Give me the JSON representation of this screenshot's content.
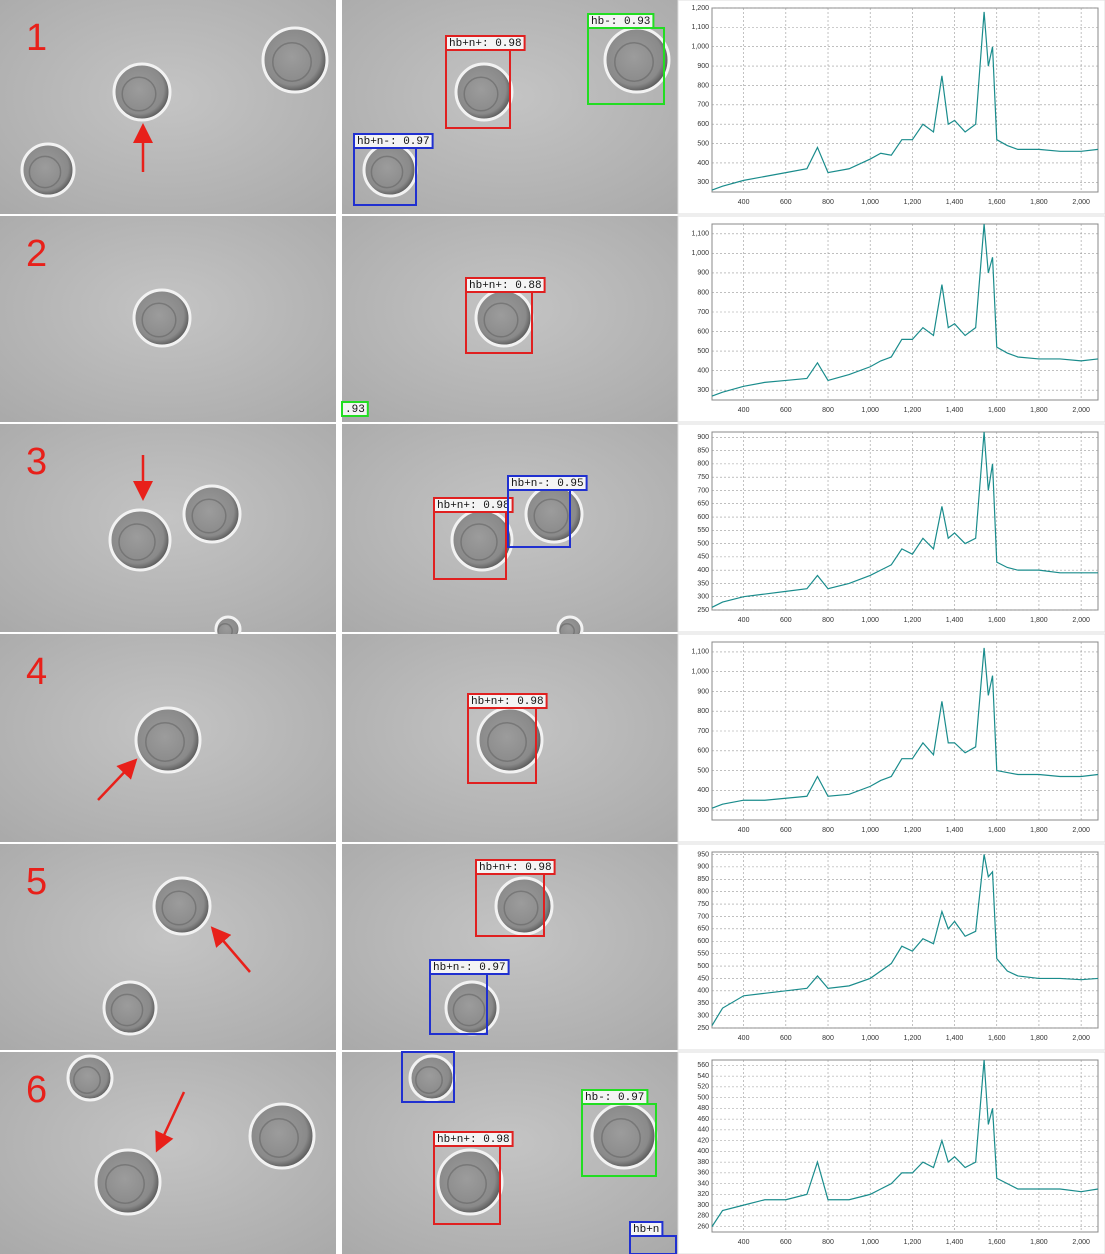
{
  "panels": [
    {
      "number": "1",
      "detections": [
        {
          "label": "hb+n+: 0.98",
          "color": "#e02020"
        },
        {
          "label": "hb-: 0.93",
          "color": "#22dd22"
        },
        {
          "label": "hb+n-: 0.97",
          "color": "#2030d0"
        }
      ]
    },
    {
      "number": "2",
      "detections": [
        {
          "label": "hb+n+: 0.88",
          "color": "#e02020"
        },
        {
          "label": ".93",
          "color": "#22dd22"
        }
      ]
    },
    {
      "number": "3",
      "detections": [
        {
          "label": "hb+n+: 0.98",
          "color": "#e02020"
        },
        {
          "label": "hb+n-: 0.95",
          "color": "#2030d0"
        }
      ]
    },
    {
      "number": "4",
      "detections": [
        {
          "label": "hb+n+: 0.98",
          "color": "#e02020"
        }
      ]
    },
    {
      "number": "5",
      "detections": [
        {
          "label": "hb+n+: 0.98",
          "color": "#e02020"
        },
        {
          "label": "hb+n-: 0.97",
          "color": "#2030d0"
        }
      ]
    },
    {
      "number": "6",
      "detections": [
        {
          "label": "hb-: 0.97",
          "color": "#22dd22"
        },
        {
          "label": "hb+n+: 0.98",
          "color": "#e02020"
        },
        {
          "label": "hb+n",
          "color": "#2030d0"
        }
      ]
    }
  ],
  "chart_data": [
    {
      "type": "line",
      "color": "#1a8c8c",
      "grid": true,
      "xlim": [
        250,
        2080
      ],
      "ylim": [
        250,
        1200
      ],
      "xticks": [
        400,
        600,
        800,
        {
          "value": 1000,
          "label": "1,000"
        },
        {
          "value": 1200,
          "label": "1,200"
        },
        {
          "value": 1400,
          "label": "1,400"
        },
        {
          "value": 1600,
          "label": "1,600"
        },
        {
          "value": 1800,
          "label": "1,800"
        },
        {
          "value": 2000,
          "label": "2,000"
        }
      ],
      "yticks": [
        300,
        400,
        500,
        600,
        700,
        800,
        900,
        {
          "value": 1000,
          "label": "1,000"
        },
        {
          "value": 1100,
          "label": "1,100"
        },
        {
          "value": 1200,
          "label": "1,200"
        }
      ],
      "x": [
        250,
        300,
        400,
        500,
        600,
        700,
        750,
        800,
        900,
        1000,
        1050,
        1100,
        1150,
        1200,
        1250,
        1300,
        1340,
        1370,
        1400,
        1450,
        1500,
        1540,
        1560,
        1580,
        1600,
        1650,
        1700,
        1800,
        1900,
        2000,
        2080
      ],
      "values": [
        260,
        280,
        310,
        330,
        350,
        370,
        480,
        350,
        370,
        420,
        450,
        440,
        520,
        520,
        600,
        560,
        850,
        600,
        620,
        560,
        600,
        1180,
        900,
        1000,
        520,
        490,
        470,
        470,
        460,
        460,
        470
      ]
    },
    {
      "type": "line",
      "color": "#1a8c8c",
      "grid": true,
      "xlim": [
        250,
        2080
      ],
      "ylim": [
        250,
        1150
      ],
      "xticks": [
        400,
        600,
        800,
        {
          "value": 1000,
          "label": "1,000"
        },
        {
          "value": 1200,
          "label": "1,200"
        },
        {
          "value": 1400,
          "label": "1,400"
        },
        {
          "value": 1600,
          "label": "1,600"
        },
        {
          "value": 1800,
          "label": "1,800"
        },
        {
          "value": 2000,
          "label": "2,000"
        }
      ],
      "yticks": [
        300,
        400,
        500,
        600,
        700,
        800,
        900,
        {
          "value": 1000,
          "label": "1,000"
        },
        {
          "value": 1100,
          "label": "1,100"
        }
      ],
      "x": [
        250,
        300,
        400,
        500,
        600,
        700,
        750,
        800,
        900,
        1000,
        1050,
        1100,
        1150,
        1200,
        1250,
        1300,
        1340,
        1370,
        1400,
        1450,
        1500,
        1540,
        1560,
        1580,
        1600,
        1650,
        1700,
        1800,
        1900,
        2000,
        2080
      ],
      "values": [
        270,
        290,
        320,
        340,
        350,
        360,
        440,
        350,
        380,
        420,
        450,
        470,
        560,
        560,
        620,
        580,
        840,
        620,
        640,
        580,
        620,
        1150,
        900,
        980,
        520,
        490,
        470,
        460,
        460,
        450,
        460
      ]
    },
    {
      "type": "line",
      "color": "#1a8c8c",
      "grid": true,
      "xlim": [
        250,
        2080
      ],
      "ylim": [
        250,
        920
      ],
      "xticks": [
        400,
        600,
        800,
        {
          "value": 1000,
          "label": "1,000"
        },
        {
          "value": 1200,
          "label": "1,200"
        },
        {
          "value": 1400,
          "label": "1,400"
        },
        {
          "value": 1600,
          "label": "1,600"
        },
        {
          "value": 1800,
          "label": "1,800"
        },
        {
          "value": 2000,
          "label": "2,000"
        }
      ],
      "yticks": [
        250,
        300,
        350,
        400,
        450,
        500,
        550,
        600,
        650,
        700,
        750,
        800,
        850,
        900
      ],
      "x": [
        250,
        300,
        400,
        500,
        600,
        700,
        750,
        800,
        900,
        1000,
        1050,
        1100,
        1150,
        1200,
        1250,
        1300,
        1340,
        1370,
        1400,
        1450,
        1500,
        1540,
        1560,
        1580,
        1600,
        1650,
        1700,
        1800,
        1900,
        2000,
        2080
      ],
      "values": [
        260,
        280,
        300,
        310,
        320,
        330,
        380,
        330,
        350,
        380,
        400,
        420,
        480,
        460,
        520,
        480,
        640,
        520,
        540,
        500,
        520,
        920,
        700,
        800,
        430,
        410,
        400,
        400,
        390,
        390,
        390
      ]
    },
    {
      "type": "line",
      "color": "#1a8c8c",
      "grid": true,
      "xlim": [
        250,
        2080
      ],
      "ylim": [
        250,
        1150
      ],
      "xticks": [
        400,
        600,
        800,
        {
          "value": 1000,
          "label": "1,000"
        },
        {
          "value": 1200,
          "label": "1,200"
        },
        {
          "value": 1400,
          "label": "1,400"
        },
        {
          "value": 1600,
          "label": "1,600"
        },
        {
          "value": 1800,
          "label": "1,800"
        },
        {
          "value": 2000,
          "label": "2,000"
        }
      ],
      "yticks": [
        300,
        400,
        500,
        600,
        700,
        800,
        900,
        {
          "value": 1000,
          "label": "1,000"
        },
        {
          "value": 1100,
          "label": "1,100"
        }
      ],
      "x": [
        250,
        300,
        400,
        500,
        600,
        700,
        750,
        800,
        900,
        1000,
        1050,
        1100,
        1150,
        1200,
        1250,
        1300,
        1340,
        1370,
        1400,
        1450,
        1500,
        1540,
        1560,
        1580,
        1600,
        1650,
        1700,
        1800,
        1900,
        2000,
        2080
      ],
      "values": [
        310,
        330,
        350,
        350,
        360,
        370,
        470,
        370,
        380,
        420,
        450,
        470,
        560,
        560,
        640,
        580,
        850,
        640,
        640,
        590,
        620,
        1120,
        880,
        980,
        500,
        490,
        480,
        480,
        470,
        470,
        480
      ]
    },
    {
      "type": "line",
      "color": "#1a8c8c",
      "grid": true,
      "xlim": [
        250,
        2080
      ],
      "ylim": [
        250,
        960
      ],
      "xticks": [
        400,
        600,
        800,
        {
          "value": 1000,
          "label": "1,000"
        },
        {
          "value": 1200,
          "label": "1,200"
        },
        {
          "value": 1400,
          "label": "1,400"
        },
        {
          "value": 1600,
          "label": "1,600"
        },
        {
          "value": 1800,
          "label": "1,800"
        },
        {
          "value": 2000,
          "label": "2,000"
        }
      ],
      "yticks": [
        250,
        300,
        350,
        400,
        450,
        500,
        550,
        600,
        650,
        700,
        750,
        800,
        850,
        900,
        950
      ],
      "x": [
        250,
        300,
        400,
        500,
        600,
        700,
        750,
        800,
        900,
        1000,
        1050,
        1100,
        1150,
        1200,
        1250,
        1300,
        1340,
        1370,
        1400,
        1450,
        1500,
        1540,
        1560,
        1580,
        1600,
        1650,
        1700,
        1800,
        1900,
        2000,
        2080
      ],
      "values": [
        260,
        330,
        380,
        390,
        400,
        410,
        460,
        410,
        420,
        450,
        480,
        510,
        580,
        560,
        610,
        590,
        720,
        650,
        680,
        620,
        640,
        950,
        860,
        880,
        530,
        480,
        460,
        450,
        450,
        445,
        450
      ]
    },
    {
      "type": "line",
      "color": "#1a8c8c",
      "grid": true,
      "xlim": [
        250,
        2080
      ],
      "ylim": [
        250,
        570
      ],
      "xticks": [
        400,
        600,
        800,
        {
          "value": 1000,
          "label": "1,000"
        },
        {
          "value": 1200,
          "label": "1,200"
        },
        {
          "value": 1400,
          "label": "1,400"
        },
        {
          "value": 1600,
          "label": "1,600"
        },
        {
          "value": 1800,
          "label": "1,800"
        },
        {
          "value": 2000,
          "label": "2,000"
        }
      ],
      "yticks": [
        260,
        280,
        300,
        320,
        340,
        360,
        380,
        400,
        420,
        440,
        460,
        480,
        500,
        520,
        540,
        560
      ],
      "x": [
        250,
        300,
        400,
        500,
        600,
        700,
        750,
        800,
        900,
        1000,
        1050,
        1100,
        1150,
        1200,
        1250,
        1300,
        1340,
        1370,
        1400,
        1450,
        1500,
        1540,
        1560,
        1580,
        1600,
        1650,
        1700,
        1800,
        1900,
        2000,
        2080
      ],
      "values": [
        260,
        290,
        300,
        310,
        310,
        320,
        380,
        310,
        310,
        320,
        330,
        340,
        360,
        360,
        380,
        370,
        420,
        380,
        390,
        370,
        380,
        570,
        450,
        480,
        350,
        340,
        330,
        330,
        330,
        325,
        330
      ]
    }
  ]
}
